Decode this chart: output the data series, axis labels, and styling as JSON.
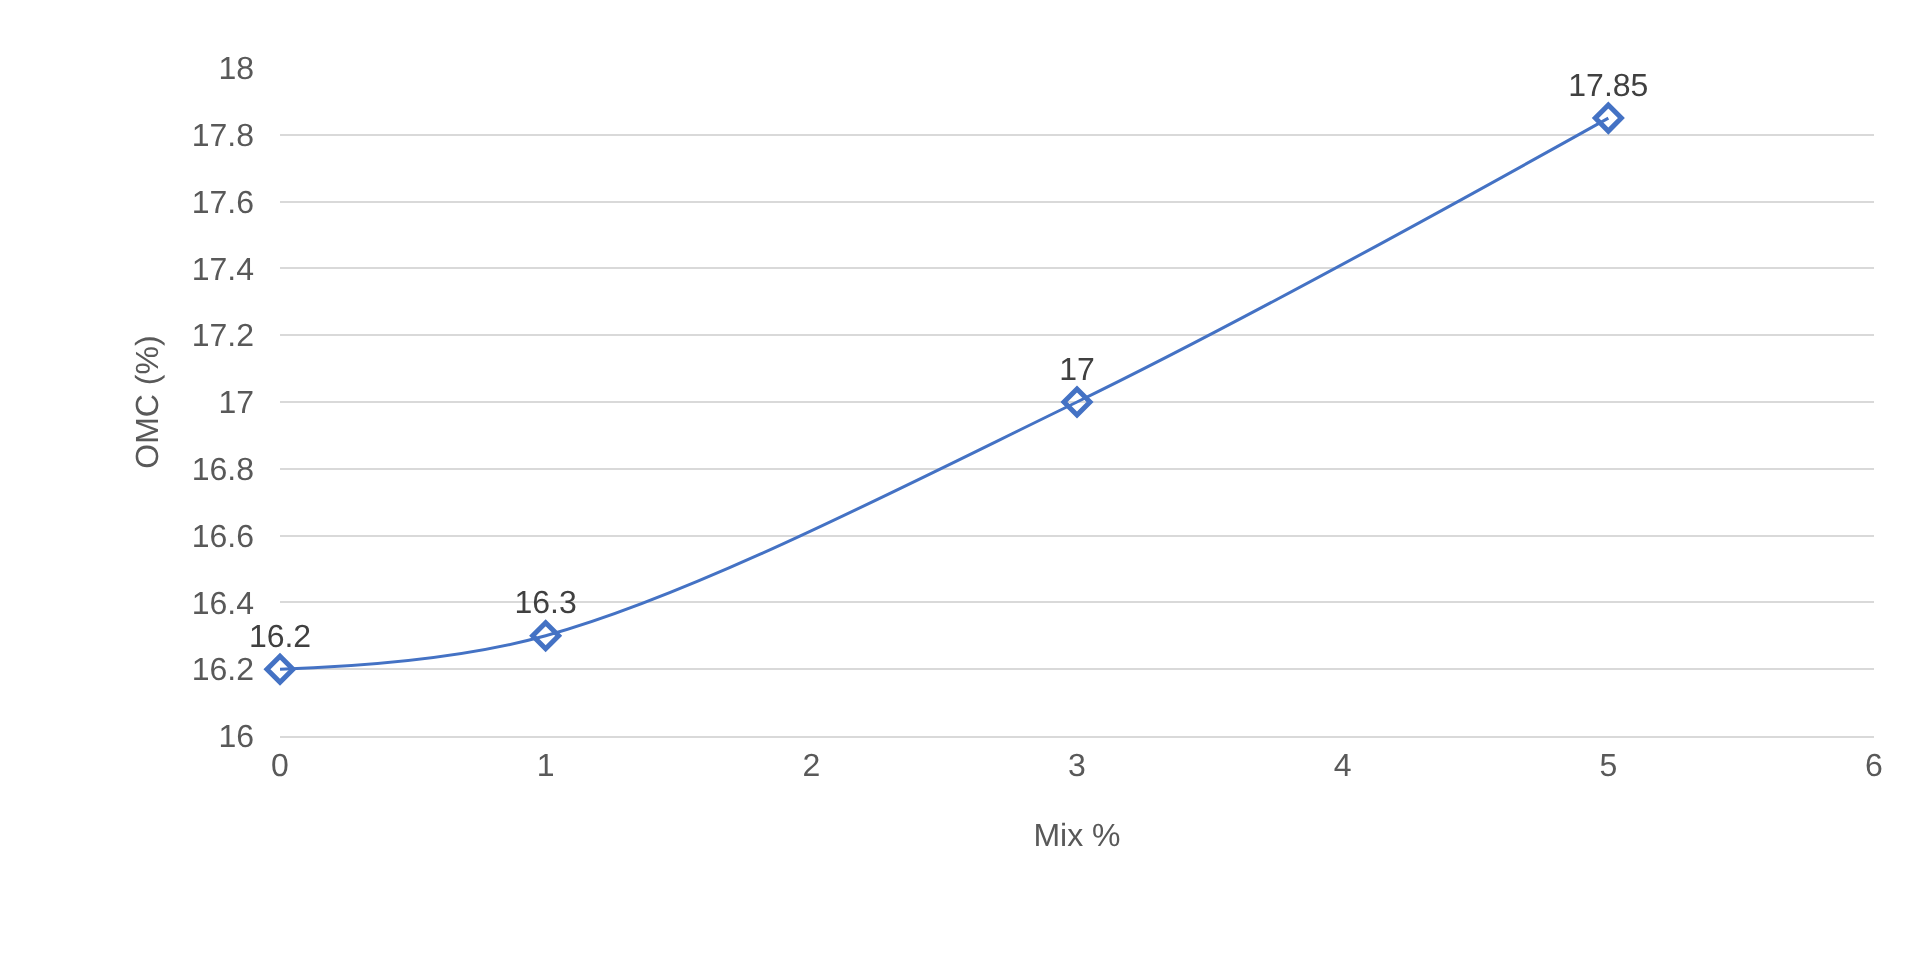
{
  "chart_data": {
    "type": "line",
    "xlabel": "Mix %",
    "ylabel": "OMC (%)",
    "x": [
      0,
      1,
      3,
      5
    ],
    "series": [
      {
        "color": "#4472c4",
        "values": [
          16.2,
          16.3,
          17,
          17.85
        ]
      }
    ],
    "xlim": [
      0,
      6
    ],
    "xticks": [
      0,
      1,
      2,
      3,
      4,
      5,
      6
    ],
    "ylim": [
      16,
      18
    ],
    "yticks": [
      16,
      16.2,
      16.4,
      16.6,
      16.8,
      17,
      17.2,
      17.4,
      17.6,
      17.8,
      18
    ],
    "grid": "y",
    "marker": "diamond",
    "line_style": "solid",
    "data_labels": true
  }
}
